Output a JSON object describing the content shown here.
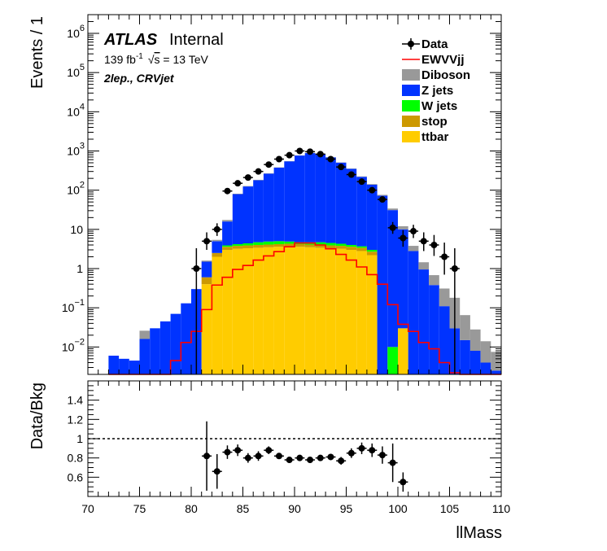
{
  "atlas": {
    "label": "ATLAS",
    "status": "Internal",
    "lumi_value": "139 fb",
    "lumi_exp": "-1",
    "sqrt_sym": "√",
    "sqrt_arg": "s",
    "energy": " = 13 TeV",
    "region": "2lep., CRVjet"
  },
  "colors": {
    "Data": "#000000",
    "EWVVjj": "#ff0000",
    "Diboson": "#999999",
    "Z jets": "#0033ff",
    "W jets": "#00ff00",
    "stop": "#cc9900",
    "ttbar": "#ffcc00"
  },
  "chart_data": [
    {
      "type": "bar",
      "subtype": "stacked-histogram-log",
      "title": "",
      "xlabel": "llMass",
      "ylabel": "Events / 1",
      "xlim": [
        70,
        110
      ],
      "ylim": [
        0.002,
        3000000
      ],
      "yscale": "log",
      "x_ticks": [
        70,
        75,
        80,
        85,
        90,
        95,
        100,
        105,
        110
      ],
      "y_tick_labels": [
        {
          "base": "10",
          "exp": "6",
          "value": 1000000
        },
        {
          "base": "10",
          "exp": "5",
          "value": 100000
        },
        {
          "base": "10",
          "exp": "4",
          "value": 10000
        },
        {
          "base": "10",
          "exp": "3",
          "value": 1000
        },
        {
          "base": "10",
          "exp": "2",
          "value": 100
        },
        {
          "base": "10",
          "exp": "",
          "value": 10
        },
        {
          "base": "1",
          "exp": "",
          "value": 1
        },
        {
          "base": "10",
          "exp": "−1",
          "value": 0.1
        },
        {
          "base": "10",
          "exp": "−2",
          "value": 0.01
        }
      ],
      "legend": [
        "Data",
        "EWVVjj",
        "Diboson",
        "Z jets",
        "W jets",
        "stop",
        "ttbar"
      ],
      "legend_position": "top-right",
      "bin_edges_start": 72,
      "bin_width": 1,
      "stack_order": [
        "ttbar",
        "stop",
        "W jets",
        "Z jets",
        "Diboson"
      ],
      "series": [
        {
          "name": "ttbar",
          "values": [
            0,
            0,
            0,
            0,
            0,
            0,
            0,
            0,
            0,
            0.4,
            2.0,
            3.0,
            3.2,
            3.3,
            3.4,
            3.5,
            3.6,
            3.7,
            3.6,
            3.5,
            3.4,
            3.3,
            3.2,
            3.0,
            2.8,
            2.2,
            0,
            0,
            0.03,
            0,
            0,
            0,
            0,
            0,
            0,
            0,
            0,
            0
          ]
        },
        {
          "name": "stop",
          "values": [
            0,
            0,
            0,
            0,
            0,
            0,
            0,
            0,
            0,
            0.2,
            0.5,
            0.6,
            0.6,
            0.6,
            0.6,
            0.6,
            0.6,
            0.6,
            0.6,
            0.6,
            0.6,
            0.6,
            0.6,
            0.6,
            0.6,
            0.5,
            0,
            0,
            0,
            0,
            0,
            0,
            0,
            0,
            0,
            0,
            0,
            0
          ]
        },
        {
          "name": "W jets",
          "values": [
            0,
            0,
            0,
            0,
            0,
            0,
            0,
            0,
            0,
            0,
            0,
            0.3,
            0.4,
            0.5,
            0.7,
            0.8,
            0.8,
            0.6,
            0.5,
            0.6,
            0.7,
            0.6,
            0.5,
            0.4,
            0.3,
            0.3,
            0,
            0.01,
            0,
            0,
            0,
            0,
            0,
            0,
            0,
            0,
            0,
            0
          ]
        },
        {
          "name": "Z jets",
          "values": [
            0.006,
            0.005,
            0.0045,
            0.016,
            0.03,
            0.045,
            0.07,
            0.13,
            0.3,
            0.9,
            2.5,
            12,
            75,
            120,
            175,
            260,
            370,
            540,
            760,
            880,
            830,
            680,
            500,
            345,
            215,
            135,
            72,
            31,
            10,
            2.8,
            0.95,
            0.38,
            0.11,
            0.03,
            0.015,
            0.008,
            0.004,
            0.0025
          ]
        },
        {
          "name": "Diboson",
          "values": [
            0,
            0,
            0,
            0.01,
            0,
            0,
            0,
            0,
            0,
            0.1,
            0.4,
            1.5,
            2,
            3,
            4,
            5,
            6,
            7,
            8,
            9,
            9,
            9,
            8,
            7,
            6,
            5,
            4,
            3,
            2,
            1.0,
            0.5,
            0.3,
            0.2,
            0.15,
            0.05,
            0.02,
            0.01,
            0.005
          ]
        }
      ],
      "signal": {
        "name": "EWVVjj",
        "values": [
          0,
          0,
          0,
          0,
          0,
          0,
          0.0045,
          0.013,
          0.025,
          0.09,
          0.38,
          0.6,
          0.95,
          1.2,
          1.65,
          2.1,
          2.7,
          3.6,
          4.5,
          4.5,
          4.0,
          3.2,
          2.3,
          1.65,
          1.1,
          0.7,
          0.4,
          0.12,
          0.038,
          0.025,
          0.013,
          0.009,
          0.004,
          0.0022,
          0.002,
          0.002,
          0.002,
          0.002
        ]
      },
      "data_points": [
        {
          "x": 80.5,
          "y": 1,
          "err_lo": 0.998,
          "err_hi": 2.3
        },
        {
          "x": 81.5,
          "y": 5,
          "err_lo": 2.0,
          "err_hi": 3.4
        },
        {
          "x": 82.5,
          "y": 10,
          "err_lo": 3.2,
          "err_hi": 4.3
        },
        {
          "x": 83.5,
          "y": 95,
          "err_lo": 10,
          "err_hi": 10
        },
        {
          "x": 84.5,
          "y": 150,
          "err_lo": 12,
          "err_hi": 12
        },
        {
          "x": 85.5,
          "y": 210,
          "err_lo": 14,
          "err_hi": 14
        },
        {
          "x": 86.5,
          "y": 300,
          "err_lo": 17,
          "err_hi": 17
        },
        {
          "x": 87.5,
          "y": 450,
          "err_lo": 21,
          "err_hi": 21
        },
        {
          "x": 88.5,
          "y": 620,
          "err_lo": 25,
          "err_hi": 25
        },
        {
          "x": 89.5,
          "y": 780,
          "err_lo": 28,
          "err_hi": 28
        },
        {
          "x": 90.5,
          "y": 1000,
          "err_lo": 32,
          "err_hi": 32
        },
        {
          "x": 91.5,
          "y": 960,
          "err_lo": 31,
          "err_hi": 31
        },
        {
          "x": 92.5,
          "y": 830,
          "err_lo": 29,
          "err_hi": 29
        },
        {
          "x": 93.5,
          "y": 620,
          "err_lo": 25,
          "err_hi": 25
        },
        {
          "x": 94.5,
          "y": 390,
          "err_lo": 20,
          "err_hi": 20
        },
        {
          "x": 95.5,
          "y": 250,
          "err_lo": 16,
          "err_hi": 16
        },
        {
          "x": 96.5,
          "y": 165,
          "err_lo": 13,
          "err_hi": 13
        },
        {
          "x": 97.5,
          "y": 100,
          "err_lo": 10,
          "err_hi": 10
        },
        {
          "x": 98.5,
          "y": 58,
          "err_lo": 8,
          "err_hi": 8
        },
        {
          "x": 99.5,
          "y": 11,
          "err_lo": 3.3,
          "err_hi": 4.4
        },
        {
          "x": 100.5,
          "y": 6,
          "err_lo": 2.4,
          "err_hi": 3.6
        },
        {
          "x": 101.5,
          "y": 9,
          "err_lo": 3.0,
          "err_hi": 4.1
        },
        {
          "x": 102.5,
          "y": 5,
          "err_lo": 2.2,
          "err_hi": 3.4
        },
        {
          "x": 103.5,
          "y": 4,
          "err_lo": 1.9,
          "err_hi": 3.2
        },
        {
          "x": 104.5,
          "y": 2,
          "err_lo": 1.3,
          "err_hi": 2.6
        },
        {
          "x": 105.5,
          "y": 1,
          "err_lo": 0.998,
          "err_hi": 2.3
        }
      ]
    },
    {
      "type": "scatter",
      "title": "",
      "xlabel": "llMass",
      "ylabel": "Data/Bkg",
      "xlim": [
        70,
        110
      ],
      "ylim": [
        0.4,
        1.6
      ],
      "x_ticks": [
        70,
        75,
        80,
        85,
        90,
        95,
        100,
        105,
        110
      ],
      "y_ticks": [
        "1.4",
        "1.2",
        "1",
        "0.8",
        "0.6"
      ],
      "y_tick_values": [
        1.4,
        1.2,
        1.0,
        0.8,
        0.6
      ],
      "reference_line": 1.0,
      "points": [
        {
          "x": 81.5,
          "y": 0.82,
          "err": 0.36
        },
        {
          "x": 82.5,
          "y": 0.66,
          "err": 0.18
        },
        {
          "x": 83.5,
          "y": 0.86,
          "err": 0.07
        },
        {
          "x": 84.5,
          "y": 0.88,
          "err": 0.06
        },
        {
          "x": 85.5,
          "y": 0.8,
          "err": 0.05
        },
        {
          "x": 86.5,
          "y": 0.82,
          "err": 0.05
        },
        {
          "x": 87.5,
          "y": 0.88,
          "err": 0.04
        },
        {
          "x": 88.5,
          "y": 0.82,
          "err": 0.03
        },
        {
          "x": 89.5,
          "y": 0.78,
          "err": 0.03
        },
        {
          "x": 90.5,
          "y": 0.8,
          "err": 0.03
        },
        {
          "x": 91.5,
          "y": 0.78,
          "err": 0.03
        },
        {
          "x": 92.5,
          "y": 0.8,
          "err": 0.03
        },
        {
          "x": 93.5,
          "y": 0.81,
          "err": 0.03
        },
        {
          "x": 94.5,
          "y": 0.77,
          "err": 0.04
        },
        {
          "x": 95.5,
          "y": 0.85,
          "err": 0.05
        },
        {
          "x": 96.5,
          "y": 0.9,
          "err": 0.06
        },
        {
          "x": 97.5,
          "y": 0.88,
          "err": 0.07
        },
        {
          "x": 98.5,
          "y": 0.83,
          "err": 0.09
        },
        {
          "x": 99.5,
          "y": 0.75,
          "err": 0.2
        },
        {
          "x": 100.5,
          "y": 0.55,
          "err": 0.1
        }
      ]
    }
  ]
}
